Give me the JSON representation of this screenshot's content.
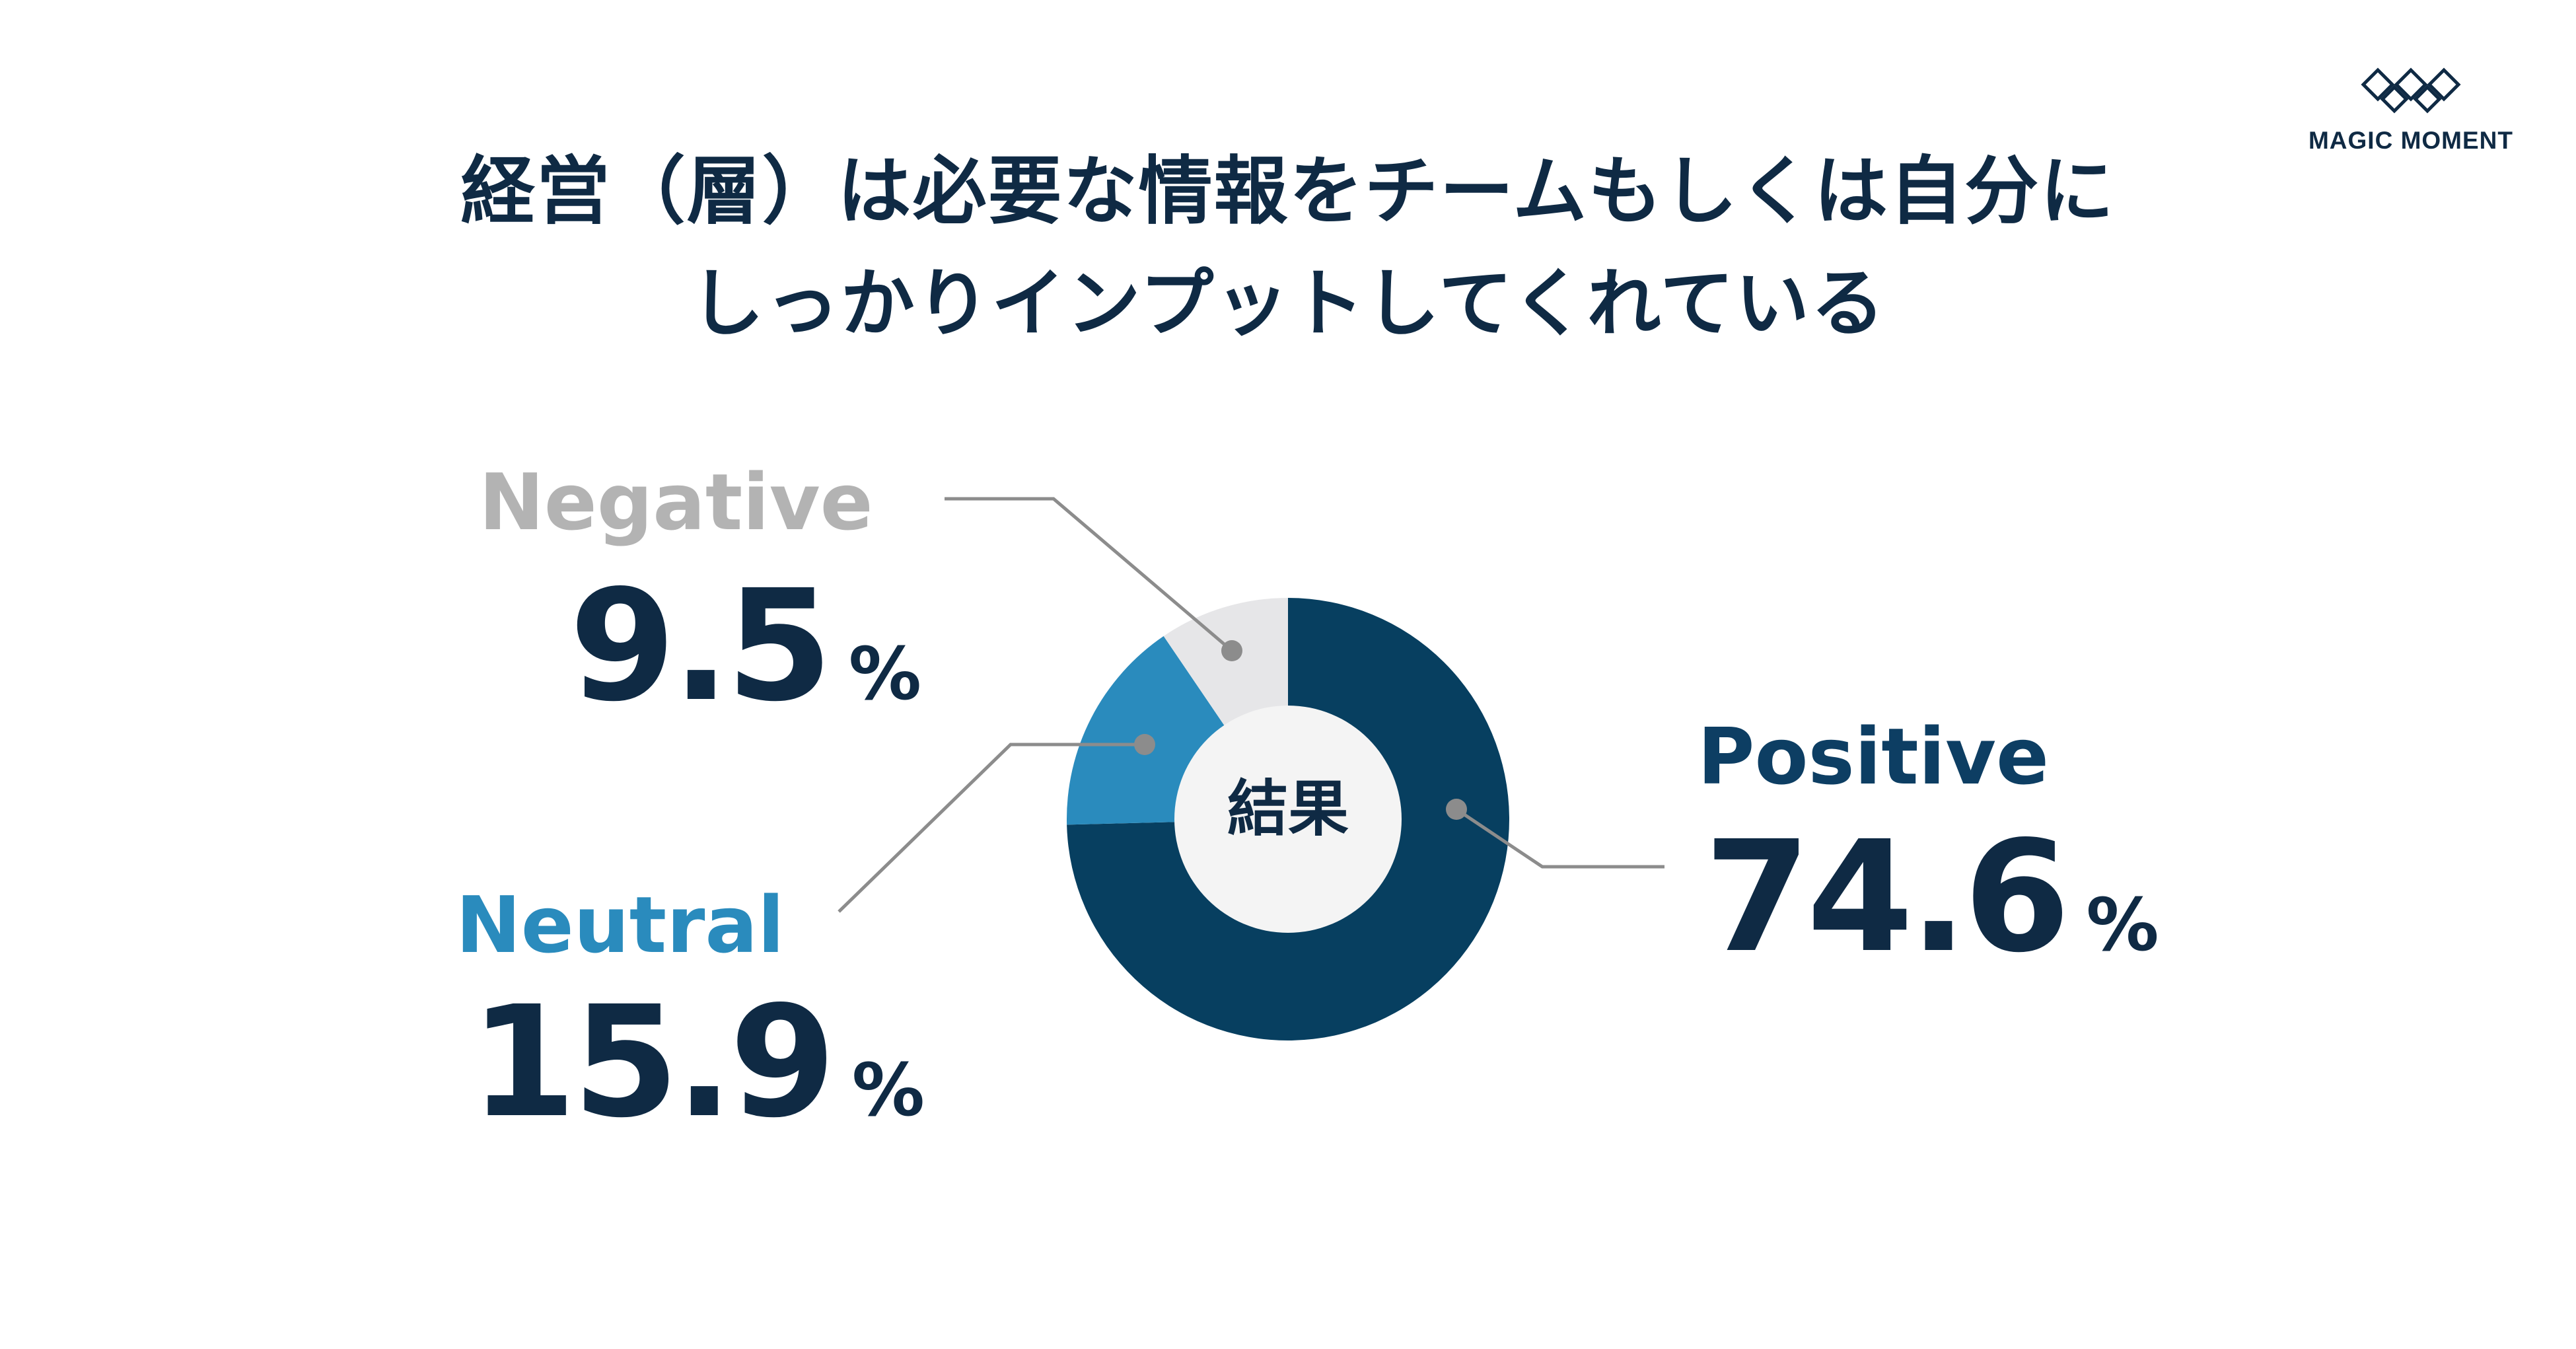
{
  "title": {
    "line1": "経営（層）は必要な情報をチームもしくは自分に",
    "line2": "しっかりインプットしてくれている"
  },
  "logo": {
    "text": "MAGIC MOMENT"
  },
  "chart_data": {
    "type": "pie",
    "title": "経営（層）は必要な情報をチームもしくは自分にしっかりインプットしてくれている",
    "center_label": "結果",
    "unit": "%",
    "slices": [
      {
        "name": "Positive",
        "value": 74.6,
        "display": "74.6",
        "color": "#073f60"
      },
      {
        "name": "Neutral",
        "value": 15.9,
        "display": "15.9",
        "color": "#2a8bbd"
      },
      {
        "name": "Negative",
        "value": 9.5,
        "display": "9.5",
        "color": "#e6e6e8"
      }
    ],
    "hole_color": "#f4f4f4",
    "leader_color": "#8c8c8c"
  }
}
